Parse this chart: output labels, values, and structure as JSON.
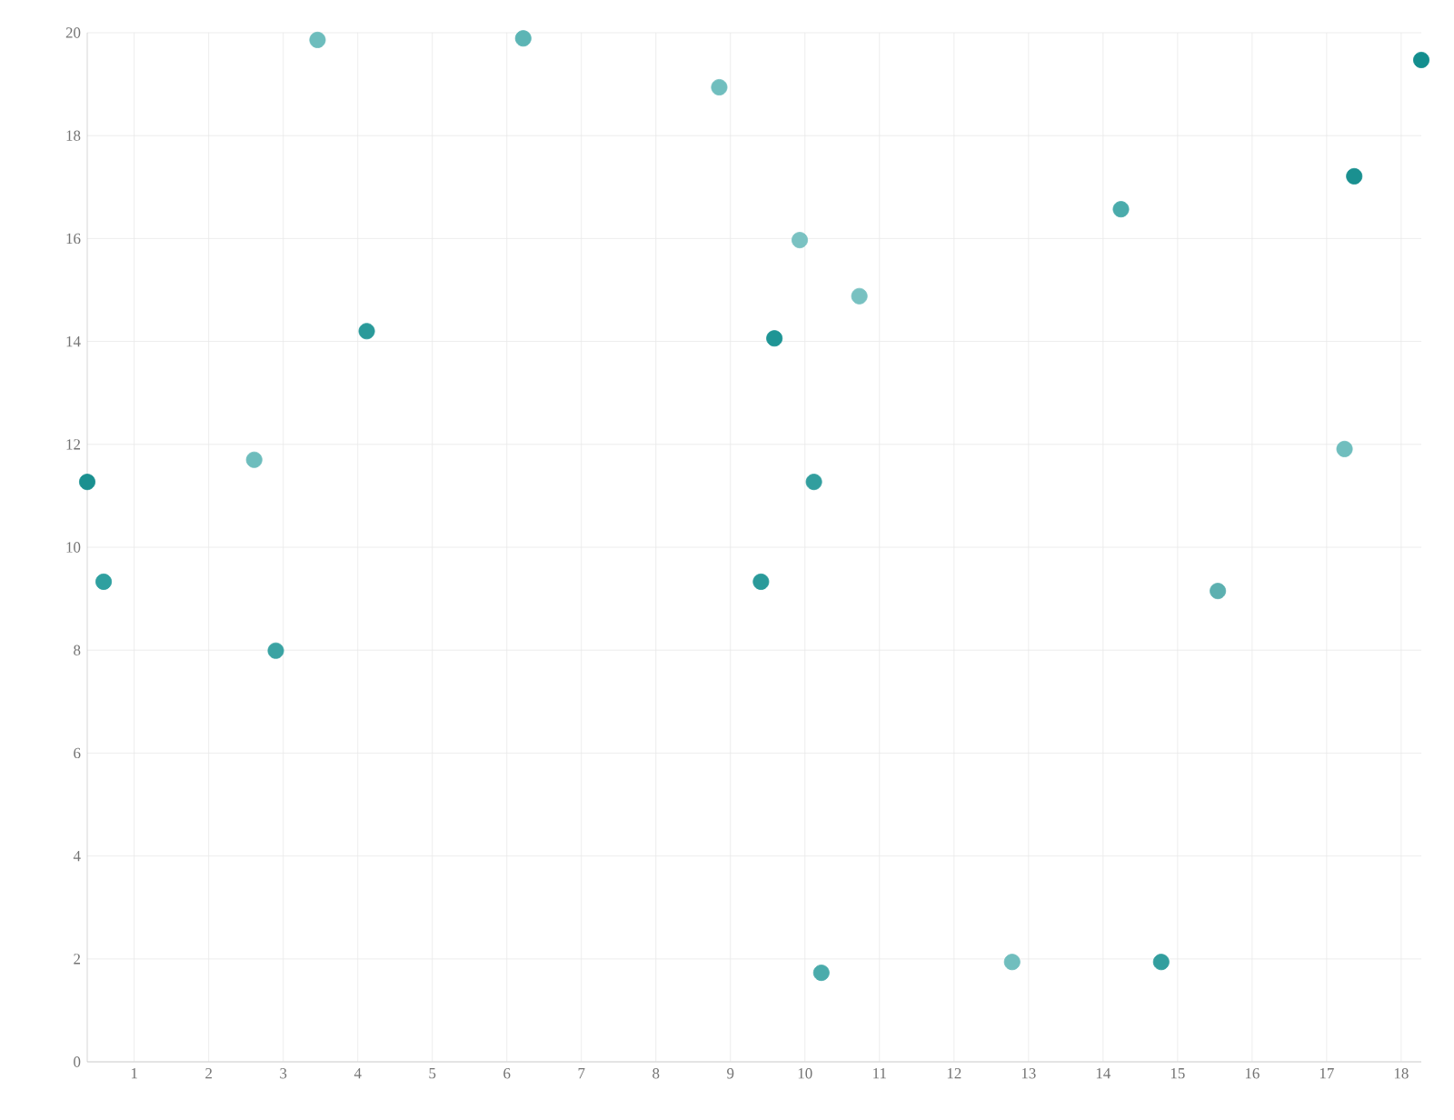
{
  "chart_data": {
    "type": "scatter",
    "marker": "circle",
    "grid": true,
    "x": [
      0.37,
      0.59,
      2.61,
      2.9,
      3.46,
      4.12,
      6.22,
      8.85,
      9.41,
      9.59,
      9.93,
      10.12,
      10.22,
      10.73,
      12.78,
      14.24,
      14.78,
      15.54,
      17.24,
      17.37,
      18.27
    ],
    "values": [
      11.27,
      9.33,
      11.7,
      7.99,
      19.86,
      14.2,
      19.89,
      18.94,
      9.33,
      14.06,
      15.97,
      11.27,
      1.73,
      14.88,
      1.94,
      16.57,
      1.94,
      9.15,
      11.91,
      17.21,
      19.47
    ],
    "colors": [
      "#1a9090",
      "#2fa0a0",
      "#6dbdbd",
      "#3aa3a3",
      "#6dbdbd",
      "#2a9a9a",
      "#5cb5b5",
      "#70bebe",
      "#2a9a9a",
      "#1f9595",
      "#7ac2c2",
      "#329e9e",
      "#4aabab",
      "#78c1c1",
      "#70bebe",
      "#4aabab",
      "#329e9e",
      "#5cb0b0",
      "#70bebe",
      "#1a9090",
      "#138e8e"
    ],
    "xlim": [
      0.37,
      18.27
    ],
    "ylim": [
      0,
      20
    ],
    "xticks": [
      1,
      2,
      3,
      4,
      5,
      6,
      7,
      8,
      9,
      10,
      11,
      12,
      13,
      14,
      15,
      16,
      17,
      18
    ],
    "yticks": [
      0,
      2,
      4,
      6,
      8,
      10,
      12,
      14,
      16,
      18,
      20
    ]
  }
}
